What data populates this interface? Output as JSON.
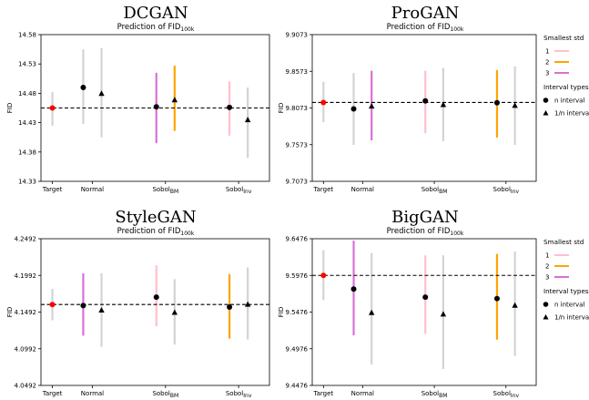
{
  "chart_data": [
    {
      "type": "scatter",
      "title": "DCGAN",
      "subtitle": "Prediction of FID",
      "subtitle_sub": "100k",
      "ylabel": "FID",
      "ylim": [
        14.33,
        14.58
      ],
      "yticks": [
        "14.33",
        "14.38",
        "14.43",
        "14.48",
        "14.53",
        "14.58"
      ],
      "categories": [
        "Target",
        "Normal",
        "Sobol_BM",
        "Sobol_Inv"
      ],
      "reference_line": 14.455,
      "series": [
        {
          "name": "Target",
          "marker": "dot",
          "color": "#ff0000",
          "x_group": 0,
          "value": 14.455,
          "interval": [
            14.425,
            14.482
          ],
          "interval_color": "#d3d3d3"
        },
        {
          "name": "n interval",
          "marker": "dot",
          "color": "#000000",
          "points": [
            {
              "group": 1,
              "value": 14.49,
              "interval": [
                14.428,
                14.555
              ],
              "interval_color": "#d3d3d3"
            },
            {
              "group": 2,
              "value": 14.457,
              "interval": [
                14.395,
                14.515
              ],
              "interval_color": "#da70d6"
            },
            {
              "group": 3,
              "value": 14.456,
              "interval": [
                14.408,
                14.5
              ],
              "interval_color": "#ffc0cb"
            }
          ]
        },
        {
          "name": "1/n interval",
          "marker": "triangle",
          "color": "#000000",
          "points": [
            {
              "group": 1,
              "value": 14.48,
              "interval": [
                14.405,
                14.557
              ],
              "interval_color": "#d3d3d3"
            },
            {
              "group": 2,
              "value": 14.469,
              "interval": [
                14.416,
                14.527
              ],
              "interval_color": "#ffa500"
            },
            {
              "group": 3,
              "value": 14.435,
              "interval": [
                14.37,
                14.49
              ],
              "interval_color": "#d3d3d3"
            }
          ]
        }
      ]
    },
    {
      "type": "scatter",
      "title": "ProGAN",
      "subtitle": "Prediction of FID",
      "subtitle_sub": "100k",
      "ylabel": "FID",
      "ylim": [
        9.7073,
        9.9073
      ],
      "yticks": [
        "9.7073",
        "9.7573",
        "9.8073",
        "9.8573",
        "9.9073"
      ],
      "categories": [
        "Target",
        "Normal",
        "Sobol_BM",
        "Sobol_Inv"
      ],
      "reference_line": 9.8148,
      "series": [
        {
          "name": "Target",
          "marker": "dot",
          "color": "#ff0000",
          "x_group": 0,
          "value": 9.8148,
          "interval": [
            9.788,
            9.843
          ],
          "interval_color": "#d3d3d3"
        },
        {
          "name": "n interval",
          "marker": "dot",
          "color": "#000000",
          "points": [
            {
              "group": 1,
              "value": 9.806,
              "interval": [
                9.757,
                9.855
              ],
              "interval_color": "#d3d3d3"
            },
            {
              "group": 2,
              "value": 9.817,
              "interval": [
                9.773,
                9.858
              ],
              "interval_color": "#ffc0cb"
            },
            {
              "group": 3,
              "value": 9.8145,
              "interval": [
                9.767,
                9.859
              ],
              "interval_color": "#ffa500"
            }
          ]
        },
        {
          "name": "1/n interval",
          "marker": "triangle",
          "color": "#000000",
          "points": [
            {
              "group": 1,
              "value": 9.81,
              "interval": [
                9.763,
                9.858
              ],
              "interval_color": "#da70d6"
            },
            {
              "group": 2,
              "value": 9.812,
              "interval": [
                9.762,
                9.862
              ],
              "interval_color": "#d3d3d3"
            },
            {
              "group": 3,
              "value": 9.811,
              "interval": [
                9.757,
                9.864
              ],
              "interval_color": "#d3d3d3"
            }
          ]
        }
      ]
    },
    {
      "type": "scatter",
      "title": "StyleGAN",
      "subtitle": "Prediction of FID",
      "subtitle_sub": "100k",
      "ylabel": "FID",
      "ylim": [
        4.0492,
        4.2492
      ],
      "yticks": [
        "4.0492",
        "4.0992",
        "4.1492",
        "4.1992",
        "4.2492"
      ],
      "categories": [
        "Target",
        "Normal",
        "Sobol_BM",
        "Sobol_Inv"
      ],
      "reference_line": 4.1595,
      "series": [
        {
          "name": "Target",
          "marker": "dot",
          "color": "#ff0000",
          "x_group": 0,
          "value": 4.1595,
          "interval": [
            4.138,
            4.181
          ],
          "interval_color": "#d3d3d3"
        },
        {
          "name": "n interval",
          "marker": "dot",
          "color": "#000000",
          "points": [
            {
              "group": 1,
              "value": 4.158,
              "interval": [
                4.117,
                4.202
              ],
              "interval_color": "#da70d6"
            },
            {
              "group": 2,
              "value": 4.1695,
              "interval": [
                4.13,
                4.213
              ],
              "interval_color": "#ffc0cb"
            },
            {
              "group": 3,
              "value": 4.156,
              "interval": [
                4.113,
                4.201
              ],
              "interval_color": "#ffa500"
            }
          ]
        },
        {
          "name": "1/n interval",
          "marker": "triangle",
          "color": "#000000",
          "points": [
            {
              "group": 1,
              "value": 4.152,
              "interval": [
                4.102,
                4.202
              ],
              "interval_color": "#d3d3d3"
            },
            {
              "group": 2,
              "value": 4.149,
              "interval": [
                4.105,
                4.194
              ],
              "interval_color": "#d3d3d3"
            },
            {
              "group": 3,
              "value": 4.16,
              "interval": [
                4.112,
                4.21
              ],
              "interval_color": "#d3d3d3"
            }
          ]
        }
      ]
    },
    {
      "type": "scatter",
      "title": "BigGAN",
      "subtitle": "Prediction of FID",
      "subtitle_sub": "100k",
      "ylabel": "FID",
      "ylim": [
        9.4476,
        9.6476
      ],
      "yticks": [
        "9.4476",
        "9.4976",
        "9.5476",
        "9.5976",
        "9.6476"
      ],
      "categories": [
        "Target",
        "Normal",
        "Sobol_BM",
        "Sobol_Inv"
      ],
      "reference_line": 9.5976,
      "series": [
        {
          "name": "Target",
          "marker": "dot",
          "color": "#ff0000",
          "x_group": 0,
          "value": 9.5976,
          "interval": [
            9.564,
            9.632
          ],
          "interval_color": "#d3d3d3"
        },
        {
          "name": "n interval",
          "marker": "dot",
          "color": "#000000",
          "points": [
            {
              "group": 1,
              "value": 9.579,
              "interval": [
                9.516,
                9.645
              ],
              "interval_color": "#da70d6"
            },
            {
              "group": 2,
              "value": 9.568,
              "interval": [
                9.518,
                9.625
              ],
              "interval_color": "#ffc0cb"
            },
            {
              "group": 3,
              "value": 9.566,
              "interval": [
                9.51,
                9.627
              ],
              "interval_color": "#ffa500"
            }
          ]
        },
        {
          "name": "1/n interval",
          "marker": "triangle",
          "color": "#000000",
          "points": [
            {
              "group": 1,
              "value": 9.547,
              "interval": [
                9.476,
                9.628
              ],
              "interval_color": "#d3d3d3"
            },
            {
              "group": 2,
              "value": 9.545,
              "interval": [
                9.47,
                9.625
              ],
              "interval_color": "#d3d3d3"
            },
            {
              "group": 3,
              "value": 9.557,
              "interval": [
                9.488,
                9.63
              ],
              "interval_color": "#d3d3d3"
            }
          ]
        }
      ]
    }
  ],
  "legend": {
    "std_title": "Smallest std",
    "std_items": [
      {
        "label": "1",
        "color": "#ffc0cb"
      },
      {
        "label": "2",
        "color": "#ffa500"
      },
      {
        "label": "3",
        "color": "#da70d6"
      }
    ],
    "interval_title": "Interval types",
    "interval_items": [
      {
        "label": "n interval",
        "marker": "dot"
      },
      {
        "label": "1/n interval",
        "marker": "triangle"
      }
    ]
  }
}
